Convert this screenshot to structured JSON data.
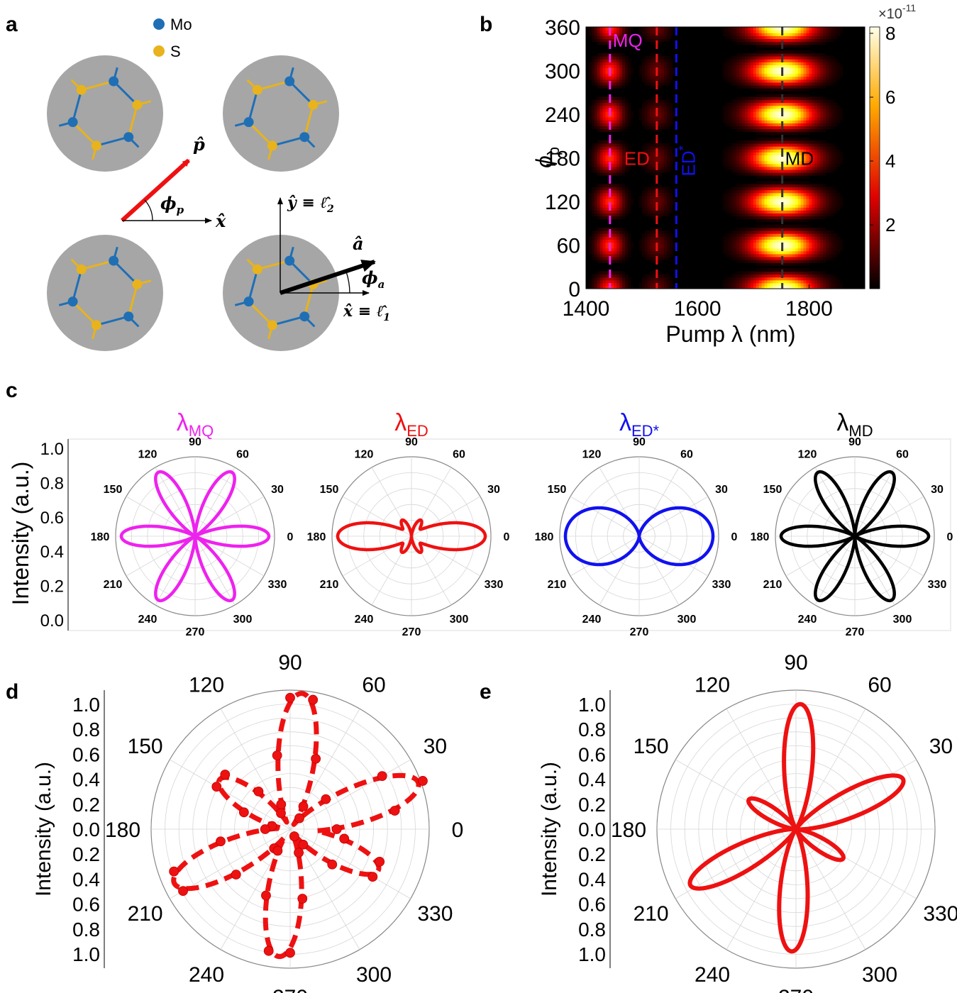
{
  "panel_labels": {
    "a": "a",
    "b": "b",
    "c": "c",
    "d": "d",
    "e": "e"
  },
  "colors": {
    "mo": "#1f6fb5",
    "s": "#e8b31c",
    "pump_arrow": "#ee1111",
    "magenta": "#ee22ee",
    "red": "#ee1111",
    "blue": "#1111ee",
    "black": "#000000",
    "disk": "#a6a6a6"
  },
  "panel_a": {
    "legend": [
      {
        "label": "Mo",
        "color_key": "mo"
      },
      {
        "label": "S",
        "color_key": "s"
      }
    ],
    "vectors": {
      "p_hat": "p̂",
      "phi_p": "ϕ",
      "phi_p_sub": "p",
      "x_hat": "x̂",
      "y_axis": "ŷ ≡ ℓ̂",
      "y_axis_sub": "2",
      "x_axis": "x̂ ≡ ℓ̂",
      "x_axis_sub": "1",
      "a_hat": "â",
      "phi_a": "ϕ",
      "phi_a_sub": "a"
    }
  },
  "chart_data": [
    {
      "id": "b",
      "type": "heatmap",
      "title": "",
      "xlabel": "Pump λ (nm)",
      "ylabel": "ϕ",
      "ylabel_sub": "p",
      "xlim": [
        1400,
        1900
      ],
      "ylim": [
        0,
        360
      ],
      "xticks": [
        1400,
        1600,
        1800
      ],
      "yticks": [
        0,
        60,
        120,
        180,
        240,
        300,
        360
      ],
      "colorbar": {
        "range": [
          0,
          8.2
        ],
        "ticks": [
          2,
          4,
          6,
          8
        ],
        "multiplier": "×10",
        "exponent": "-11"
      },
      "lines": [
        {
          "label": "MQ",
          "x": 1443,
          "color_key": "magenta"
        },
        {
          "label": "ED",
          "x": 1527,
          "color_key": "red"
        },
        {
          "label": "ED",
          "label_sup": "*",
          "x": 1562,
          "color_key": "blue"
        },
        {
          "label": "MD",
          "x": 1752,
          "color_key": "black"
        }
      ],
      "peaks": [
        {
          "wavelength_nm": 1443,
          "amplitude": 0.45
        },
        {
          "wavelength_nm": 1527,
          "amplitude": 0.15
        },
        {
          "wavelength_nm": 1752,
          "amplitude": 1.0
        }
      ]
    },
    {
      "id": "c",
      "type": "polar",
      "ylabel": "Intensity (a.u.)",
      "r_ticks": [
        "1.0",
        "0.8",
        "0.6",
        "0.4",
        "0.2",
        "0.0"
      ],
      "angle_ticks": [
        0,
        30,
        60,
        90,
        120,
        150,
        180,
        210,
        240,
        270,
        300,
        330
      ],
      "series": [
        {
          "name": "λ",
          "name_sub": "MQ",
          "color_key": "magenta",
          "model": "cos3",
          "a": 1.0,
          "b": 0.0
        },
        {
          "name": "λ",
          "name_sub": "ED",
          "color_key": "red",
          "model": "cos3",
          "a": 0.25,
          "b": 0.75
        },
        {
          "name": "λ",
          "name_sub": "ED*",
          "color_key": "blue",
          "model": "cos3",
          "a": 0.0,
          "b": 1.0
        },
        {
          "name": "λ",
          "name_sub": "MD",
          "color_key": "black",
          "model": "cos3",
          "a": 1.0,
          "b": 0.0
        }
      ]
    },
    {
      "id": "d",
      "type": "polar_scatter",
      "ylabel": "Intensity (a.u.)",
      "r_ticks": [
        "1.0",
        "0.8",
        "0.6",
        "0.4",
        "0.2",
        "0.0",
        "0.2",
        "0.4",
        "0.6",
        "0.8",
        "1.0"
      ],
      "angle_ticks": [
        0,
        30,
        60,
        90,
        120,
        150,
        180,
        210,
        240,
        270,
        300,
        330
      ],
      "color_key": "red",
      "lobes": [
        {
          "center_deg": 85,
          "peak": 0.98
        },
        {
          "center_deg": 20,
          "peak": 0.98
        },
        {
          "center_deg": 335,
          "peak": 0.7
        },
        {
          "center_deg": 265,
          "peak": 0.92
        },
        {
          "center_deg": 205,
          "peak": 0.92
        },
        {
          "center_deg": 145,
          "peak": 0.62
        }
      ],
      "lobe_width": 13
    },
    {
      "id": "e",
      "type": "polar",
      "ylabel": "Intensity (a.u.)",
      "r_ticks": [
        "1.0",
        "0.8",
        "0.6",
        "0.4",
        "0.2",
        "0.0",
        "0.2",
        "0.4",
        "0.6",
        "0.8",
        "1.0"
      ],
      "angle_ticks": [
        0,
        30,
        60,
        90,
        120,
        150,
        180,
        210,
        240,
        270,
        300,
        330
      ],
      "color_key": "red",
      "lobes": [
        {
          "center_deg": 88,
          "peak": 0.9
        },
        {
          "center_deg": 25,
          "peak": 0.85
        },
        {
          "center_deg": 328,
          "peak": 0.4
        },
        {
          "center_deg": 268,
          "peak": 0.88
        },
        {
          "center_deg": 208,
          "peak": 0.86
        },
        {
          "center_deg": 148,
          "peak": 0.4
        }
      ],
      "lobe_width": 11
    }
  ]
}
